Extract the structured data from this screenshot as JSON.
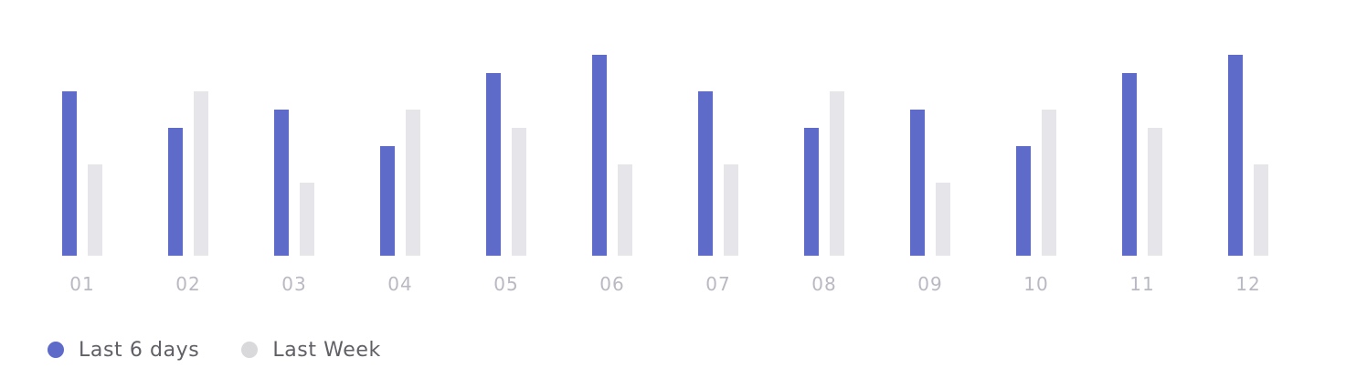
{
  "chart_data": {
    "type": "bar",
    "categories": [
      "01",
      "02",
      "03",
      "04",
      "05",
      "06",
      "07",
      "08",
      "09",
      "10",
      "11",
      "12"
    ],
    "series": [
      {
        "name": "Last 6 days",
        "color": "#5e6bc9",
        "values": [
          9,
          7,
          8,
          6,
          10,
          11,
          9,
          7,
          8,
          6,
          10,
          11
        ]
      },
      {
        "name": "Last Week",
        "color": "#e6e6ea",
        "values": [
          5,
          9,
          4,
          8,
          7,
          5,
          5,
          9,
          4,
          8,
          7,
          5
        ]
      }
    ],
    "ylim": [
      0,
      11
    ],
    "grid": false,
    "legend": "bottom-left"
  },
  "legend": {
    "items": [
      {
        "label": "Last 6 days",
        "color": "#5e6bc9"
      },
      {
        "label": "Last Week",
        "color": "#d9d9dc"
      }
    ]
  }
}
